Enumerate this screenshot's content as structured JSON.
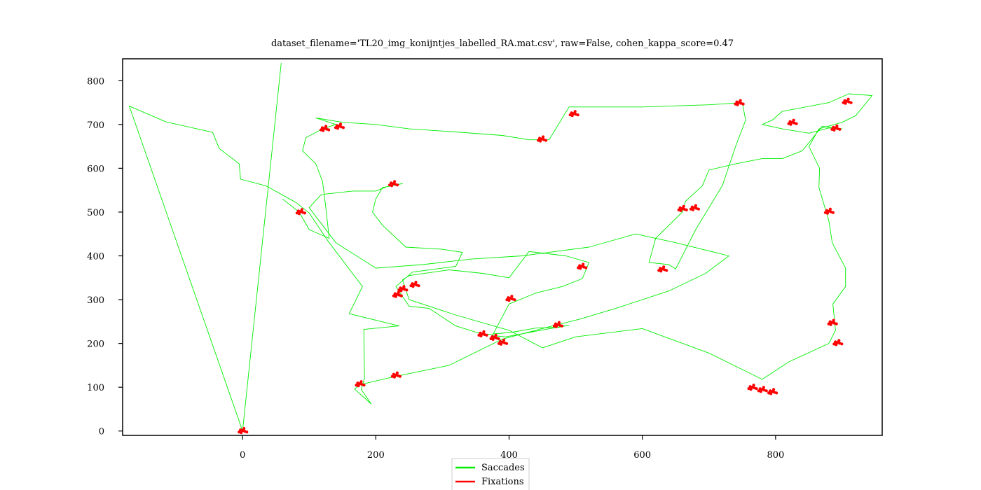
{
  "chart_data": {
    "type": "line",
    "title": "dataset_filename='TL20_img_konijntjes_labelled_RA.mat.csv', raw=False, cohen_kappa_score=0.47",
    "xlabel": "",
    "ylabel": "",
    "xlim": [
      -180,
      960
    ],
    "ylim": [
      -10,
      850
    ],
    "xticks": [
      0,
      200,
      400,
      600,
      800
    ],
    "yticks": [
      0,
      100,
      200,
      300,
      400,
      500,
      600,
      700,
      800
    ],
    "grid": false,
    "legend": {
      "placement": "bottom-center",
      "entries": [
        "Saccades",
        "Fixations"
      ]
    },
    "series": [
      {
        "name": "Saccades",
        "color": "#00ee00",
        "points": [
          [
            0,
            0
          ],
          [
            58,
            840
          ],
          [
            0,
            0
          ],
          [
            -170,
            742
          ],
          [
            -115,
            706
          ],
          [
            -45,
            682
          ],
          [
            -35,
            645
          ],
          [
            -5,
            610
          ],
          [
            -3,
            575
          ],
          [
            35,
            560
          ],
          [
            80,
            522
          ],
          [
            100,
            498
          ],
          [
            130,
            430
          ],
          [
            180,
            330
          ],
          [
            160,
            268
          ],
          [
            235,
            240
          ],
          [
            182,
            232
          ],
          [
            183,
            120
          ],
          [
            178,
            95
          ],
          [
            193,
            62
          ],
          [
            168,
            96
          ],
          [
            177,
            106
          ],
          [
            210,
            118
          ],
          [
            240,
            128
          ],
          [
            310,
            150
          ],
          [
            390,
            210
          ],
          [
            465,
            240
          ],
          [
            505,
            255
          ],
          [
            560,
            280
          ],
          [
            640,
            320
          ],
          [
            695,
            360
          ],
          [
            730,
            400
          ],
          [
            650,
            430
          ],
          [
            590,
            450
          ],
          [
            520,
            420
          ],
          [
            420,
            400
          ],
          [
            345,
            393
          ],
          [
            270,
            380
          ],
          [
            200,
            372
          ],
          [
            140,
            430
          ],
          [
            100,
            510
          ],
          [
            118,
            540
          ],
          [
            165,
            548
          ],
          [
            200,
            548
          ],
          [
            220,
            560
          ],
          [
            240,
            565
          ],
          [
            210,
            556
          ],
          [
            200,
            530
          ],
          [
            195,
            500
          ],
          [
            210,
            470
          ],
          [
            245,
            420
          ],
          [
            300,
            415
          ],
          [
            330,
            408
          ],
          [
            320,
            376
          ],
          [
            255,
            363
          ],
          [
            230,
            330
          ],
          [
            250,
            285
          ],
          [
            280,
            280
          ],
          [
            320,
            240
          ],
          [
            362,
            220
          ],
          [
            402,
            225
          ],
          [
            440,
            235
          ],
          [
            475,
            237
          ],
          [
            490,
            242
          ],
          [
            430,
            225
          ],
          [
            395,
            215
          ],
          [
            375,
            218
          ],
          [
            400,
            290
          ],
          [
            440,
            315
          ],
          [
            480,
            330
          ],
          [
            510,
            348
          ],
          [
            520,
            385
          ],
          [
            485,
            400
          ],
          [
            430,
            410
          ],
          [
            400,
            350
          ],
          [
            360,
            360
          ],
          [
            310,
            368
          ],
          [
            250,
            355
          ],
          [
            240,
            345
          ],
          [
            250,
            300
          ],
          [
            320,
            265
          ],
          [
            400,
            230
          ],
          [
            450,
            190
          ],
          [
            500,
            215
          ],
          [
            600,
            234
          ],
          [
            700,
            178
          ],
          [
            780,
            118
          ],
          [
            820,
            158
          ],
          [
            880,
            200
          ],
          [
            890,
            230
          ],
          [
            886,
            290
          ],
          [
            905,
            330
          ],
          [
            905,
            372
          ],
          [
            885,
            430
          ],
          [
            880,
            480
          ],
          [
            865,
            556
          ],
          [
            866,
            600
          ],
          [
            850,
            650
          ],
          [
            865,
            690
          ],
          [
            900,
            705
          ],
          [
            920,
            720
          ],
          [
            945,
            766
          ],
          [
            910,
            770
          ],
          [
            880,
            750
          ],
          [
            810,
            730
          ],
          [
            795,
            710
          ],
          [
            780,
            700
          ],
          [
            810,
            690
          ],
          [
            850,
            680
          ],
          [
            880,
            692
          ],
          [
            900,
            690
          ],
          [
            870,
            696
          ],
          [
            840,
            640
          ],
          [
            810,
            622
          ],
          [
            780,
            622
          ],
          [
            740,
            610
          ],
          [
            700,
            596
          ],
          [
            690,
            560
          ],
          [
            665,
            525
          ],
          [
            660,
            500
          ],
          [
            640,
            470
          ],
          [
            620,
            440
          ],
          [
            610,
            385
          ],
          [
            640,
            380
          ],
          [
            650,
            370
          ],
          [
            680,
            460
          ],
          [
            720,
            560
          ],
          [
            740,
            650
          ],
          [
            755,
            710
          ],
          [
            750,
            750
          ],
          [
            700,
            745
          ],
          [
            600,
            740
          ],
          [
            540,
            740
          ],
          [
            490,
            740
          ],
          [
            470,
            690
          ],
          [
            460,
            665
          ],
          [
            430,
            665
          ],
          [
            390,
            675
          ],
          [
            320,
            683
          ],
          [
            250,
            690
          ],
          [
            200,
            700
          ],
          [
            150,
            705
          ],
          [
            110,
            715
          ],
          [
            140,
            700
          ],
          [
            120,
            690
          ],
          [
            95,
            670
          ],
          [
            90,
            640
          ],
          [
            110,
            610
          ],
          [
            120,
            570
          ],
          [
            125,
            510
          ],
          [
            130,
            440
          ],
          [
            100,
            460
          ],
          [
            85,
            500
          ],
          [
            60,
            530
          ]
        ]
      },
      {
        "name": "Fixations",
        "color": "#ff0000",
        "clusters": [
          [
            0,
            1
          ],
          [
            87,
            501
          ],
          [
            123,
            691
          ],
          [
            145,
            696
          ],
          [
            176,
            108
          ],
          [
            230,
            128
          ],
          [
            226,
            565
          ],
          [
            240,
            325
          ],
          [
            232,
            312
          ],
          [
            258,
            335
          ],
          [
            378,
            214
          ],
          [
            390,
            203
          ],
          [
            360,
            222
          ],
          [
            402,
            303
          ],
          [
            473,
            243
          ],
          [
            509,
            376
          ],
          [
            449,
            667
          ],
          [
            497,
            725
          ],
          [
            660,
            508
          ],
          [
            678,
            510
          ],
          [
            630,
            370
          ],
          [
            745,
            750
          ],
          [
            825,
            705
          ],
          [
            880,
            502
          ],
          [
            885,
            248
          ],
          [
            893,
            202
          ],
          [
            890,
            692
          ],
          [
            907,
            753
          ],
          [
            765,
            100
          ],
          [
            780,
            95
          ],
          [
            795,
            90
          ]
        ]
      }
    ]
  }
}
